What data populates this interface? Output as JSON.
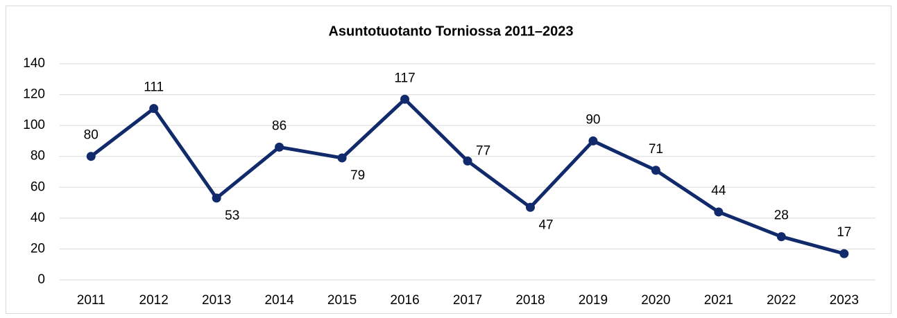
{
  "chart_data": {
    "type": "line",
    "title": "Asuntotuotanto Torniossa 2011–2023",
    "categories": [
      "2011",
      "2012",
      "2013",
      "2014",
      "2015",
      "2016",
      "2017",
      "2018",
      "2019",
      "2020",
      "2021",
      "2022",
      "2023"
    ],
    "values": [
      80,
      111,
      53,
      86,
      79,
      117,
      77,
      47,
      90,
      71,
      44,
      28,
      17
    ],
    "color": "#112a6b",
    "ylim": [
      0,
      140
    ],
    "yticks": [
      0,
      20,
      40,
      60,
      80,
      100,
      120,
      140
    ],
    "grid": true
  }
}
